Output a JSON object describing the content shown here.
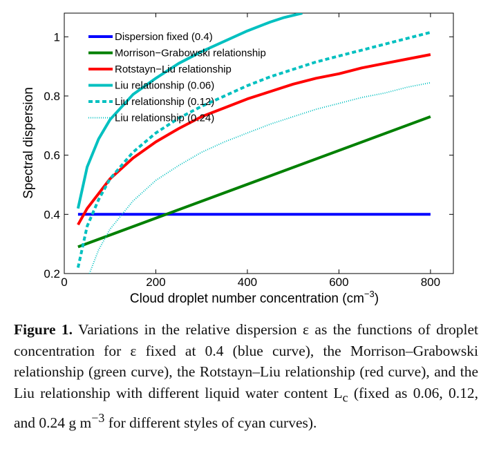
{
  "chart_data": {
    "type": "line",
    "xlabel": "Cloud droplet number concentration (cm",
    "xlabel_sup": "−3",
    "xlabel_end": ")",
    "ylabel": "Spectral dispersion",
    "xlim": [
      0,
      850
    ],
    "ylim": [
      0.2,
      1.08
    ],
    "x_ticks": [
      0,
      200,
      400,
      600,
      800
    ],
    "x_tick_labels": [
      "0",
      "200",
      "400",
      "600",
      "800"
    ],
    "y_ticks": [
      0.2,
      0.4,
      0.6,
      0.8,
      1.0
    ],
    "y_tick_labels": [
      "0.2",
      "0.4",
      "0.6",
      "0.8",
      "1"
    ],
    "grid": false,
    "legend_position": "top-left",
    "series": [
      {
        "name": "Dispersion fixed (0.4)",
        "color": "#0000ff",
        "style": "solid",
        "x": [
          30,
          800
        ],
        "y": [
          0.4,
          0.4
        ]
      },
      {
        "name": "Morrison−Grabowski relationship",
        "color": "#008000",
        "style": "solid",
        "x": [
          30,
          800
        ],
        "y": [
          0.29,
          0.73
        ]
      },
      {
        "name": "Rotstayn−Liu relationship",
        "color": "#ff0000",
        "style": "solid",
        "x": [
          30,
          50,
          100,
          150,
          200,
          250,
          300,
          350,
          400,
          450,
          500,
          550,
          600,
          650,
          700,
          750,
          800
        ],
        "y": [
          0.365,
          0.42,
          0.52,
          0.59,
          0.645,
          0.69,
          0.73,
          0.76,
          0.79,
          0.815,
          0.84,
          0.86,
          0.875,
          0.895,
          0.91,
          0.925,
          0.94
        ]
      },
      {
        "name": "Liu relationship (0.06)",
        "color": "#00c0c0",
        "style": "solid",
        "x": [
          30,
          50,
          75,
          100,
          150,
          200,
          250,
          300,
          350,
          400,
          450,
          480,
          520
        ],
        "y": [
          0.42,
          0.56,
          0.655,
          0.72,
          0.805,
          0.86,
          0.91,
          0.95,
          0.985,
          1.02,
          1.05,
          1.065,
          1.08
        ]
      },
      {
        "name": "Liu relationship (0.12)",
        "color": "#00c0c0",
        "style": "dashed",
        "x": [
          30,
          50,
          75,
          100,
          150,
          200,
          250,
          300,
          350,
          400,
          450,
          500,
          550,
          600,
          650,
          700,
          750,
          800
        ],
        "y": [
          0.22,
          0.36,
          0.45,
          0.52,
          0.61,
          0.675,
          0.725,
          0.765,
          0.8,
          0.835,
          0.865,
          0.89,
          0.915,
          0.935,
          0.955,
          0.975,
          0.995,
          1.015
        ]
      },
      {
        "name": "Liu relationship (0.24)",
        "color": "#00c0c0",
        "style": "dotted",
        "x": [
          55,
          75,
          100,
          150,
          200,
          250,
          300,
          350,
          400,
          450,
          500,
          550,
          600,
          650,
          700,
          750,
          800
        ],
        "y": [
          0.2,
          0.28,
          0.35,
          0.445,
          0.515,
          0.565,
          0.61,
          0.645,
          0.675,
          0.705,
          0.73,
          0.755,
          0.775,
          0.795,
          0.81,
          0.83,
          0.845
        ]
      }
    ]
  },
  "caption": {
    "label": "Figure 1.",
    "text": "Variations in the relative dispersion ε as the functions of droplet concentration for ε fixed at 0.4 (blue curve), the Morrison–Grabowski relationship (green curve), the Rotstayn–Liu relationship (red curve), and the Liu relationship with different liquid water content L",
    "sub": "c",
    "text_end": "(fixed as 0.06, 0.12, and 0.24 g m",
    "sup": "−3",
    "text_tail": "for different styles of cyan curves)."
  }
}
